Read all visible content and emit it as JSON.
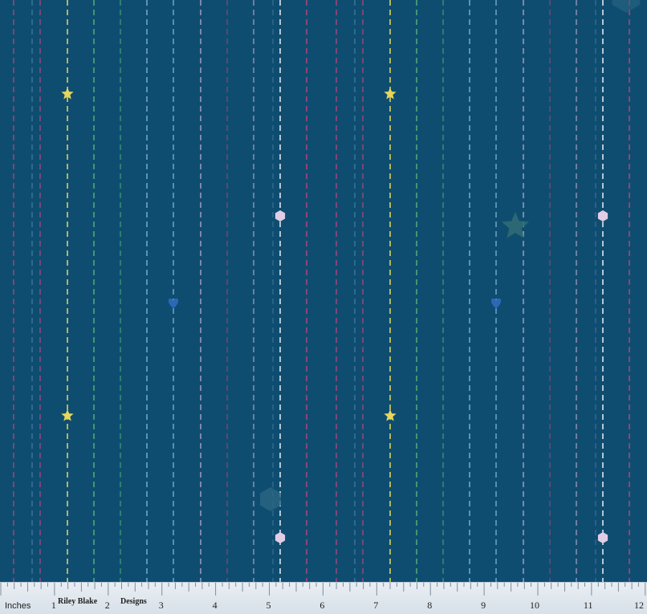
{
  "colors": {
    "background": "#0f4d70",
    "stitch_magenta": "#c0457e",
    "stitch_yellow": "#e3d95a",
    "stitch_green": "#57b87a",
    "stitch_light_blue": "#7fb3de",
    "stitch_lavender": "#cdb7dc",
    "stitch_white": "#e8eef3",
    "star": "#e6d65a",
    "heart": "#2b68b8",
    "hexagon": "#e2cde6"
  },
  "ruler": {
    "units_label": "Inches",
    "brand_part1": "Riley Blake",
    "brand_part2": "Designs",
    "numbers": [
      "1",
      "2",
      "3",
      "4",
      "5",
      "6",
      "7",
      "8",
      "9",
      "10",
      "11",
      "12"
    ]
  },
  "icons": [
    "star-icon",
    "heart-icon",
    "hexagon-icon"
  ]
}
